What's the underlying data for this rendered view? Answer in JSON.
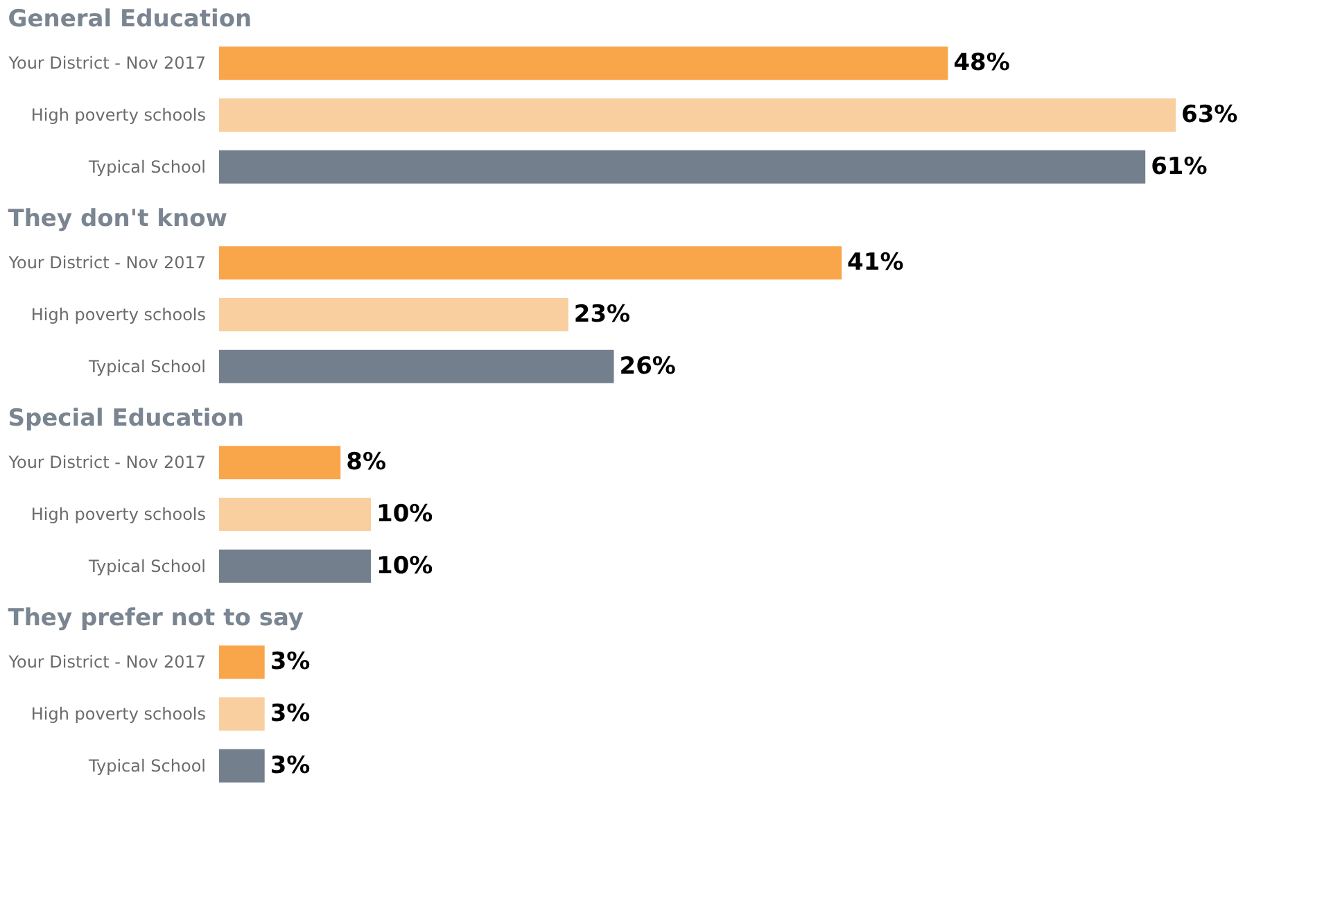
{
  "chart_data": [
    {
      "type": "bar",
      "orientation": "horizontal",
      "title": "General Education",
      "categories": [
        "Your District - Nov 2017",
        "High poverty schools",
        "Typical School"
      ],
      "values": [
        48,
        63,
        61
      ],
      "colors": [
        "#f9a54a",
        "#f9cf9f",
        "#737f8c"
      ],
      "data_labels": true,
      "value_labels": [
        "48%",
        "63%",
        "61%"
      ],
      "tick_labels": "y"
    },
    {
      "type": "bar",
      "orientation": "horizontal",
      "title": "They don't know",
      "categories": [
        "Your District - Nov 2017",
        "High poverty schools",
        "Typical School"
      ],
      "values": [
        41,
        23,
        26
      ],
      "colors": [
        "#f9a54a",
        "#f9cf9f",
        "#737f8c"
      ],
      "data_labels": true,
      "value_labels": [
        "41%",
        "23%",
        "26%"
      ],
      "tick_labels": "y"
    },
    {
      "type": "bar",
      "orientation": "horizontal",
      "title": "Special Education",
      "categories": [
        "Your District - Nov 2017",
        "High poverty schools",
        "Typical School"
      ],
      "values": [
        8,
        10,
        10
      ],
      "colors": [
        "#f9a54a",
        "#f9cf9f",
        "#737f8c"
      ],
      "data_labels": true,
      "value_labels": [
        "8%",
        "10%",
        "10%"
      ],
      "tick_labels": "y"
    },
    {
      "type": "bar",
      "orientation": "horizontal",
      "title": "They prefer not to say",
      "categories": [
        "Your District - Nov 2017",
        "High poverty schools",
        "Typical School"
      ],
      "values": [
        3,
        3,
        3
      ],
      "colors": [
        "#f9a54a",
        "#f9cf9f",
        "#737f8c"
      ],
      "data_labels": true,
      "value_labels": [
        "3%",
        "3%",
        "3%"
      ],
      "tick_labels": "y"
    }
  ]
}
